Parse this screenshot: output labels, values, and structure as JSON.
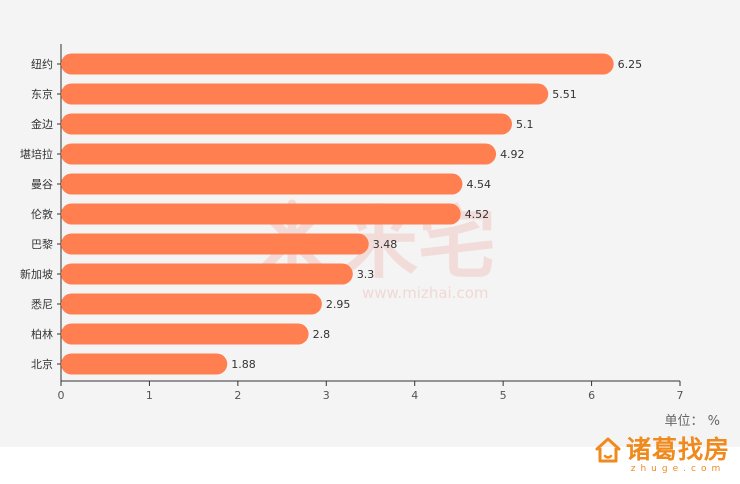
{
  "chart_data": {
    "type": "bar",
    "orientation": "horizontal",
    "categories": [
      "纽约",
      "东京",
      "金边",
      "堪培拉",
      "曼谷",
      "伦敦",
      "巴黎",
      "新加坡",
      "悉尼",
      "柏林",
      "北京"
    ],
    "values": [
      6.25,
      5.51,
      5.1,
      4.92,
      4.54,
      4.52,
      3.48,
      3.3,
      2.95,
      2.8,
      1.88
    ],
    "value_labels": [
      "6.25",
      "5.51",
      "5.1",
      "4.92",
      "4.54",
      "4.52",
      "3.48",
      "3.3",
      "2.95",
      "2.8",
      "1.88"
    ],
    "xlim": [
      0,
      7
    ],
    "xticks": [
      "0",
      "1",
      "2",
      "3",
      "4",
      "5",
      "6",
      "7"
    ],
    "unit_label": "单位： %",
    "grid": false,
    "bar_color": "#ff7f50"
  },
  "watermark": {
    "text": "米宅",
    "url": "www.mizhai.com"
  },
  "brand": {
    "name": "诸葛找房",
    "sub": "zhuge.com",
    "icon": "house-icon",
    "color": "#f08a1e"
  }
}
